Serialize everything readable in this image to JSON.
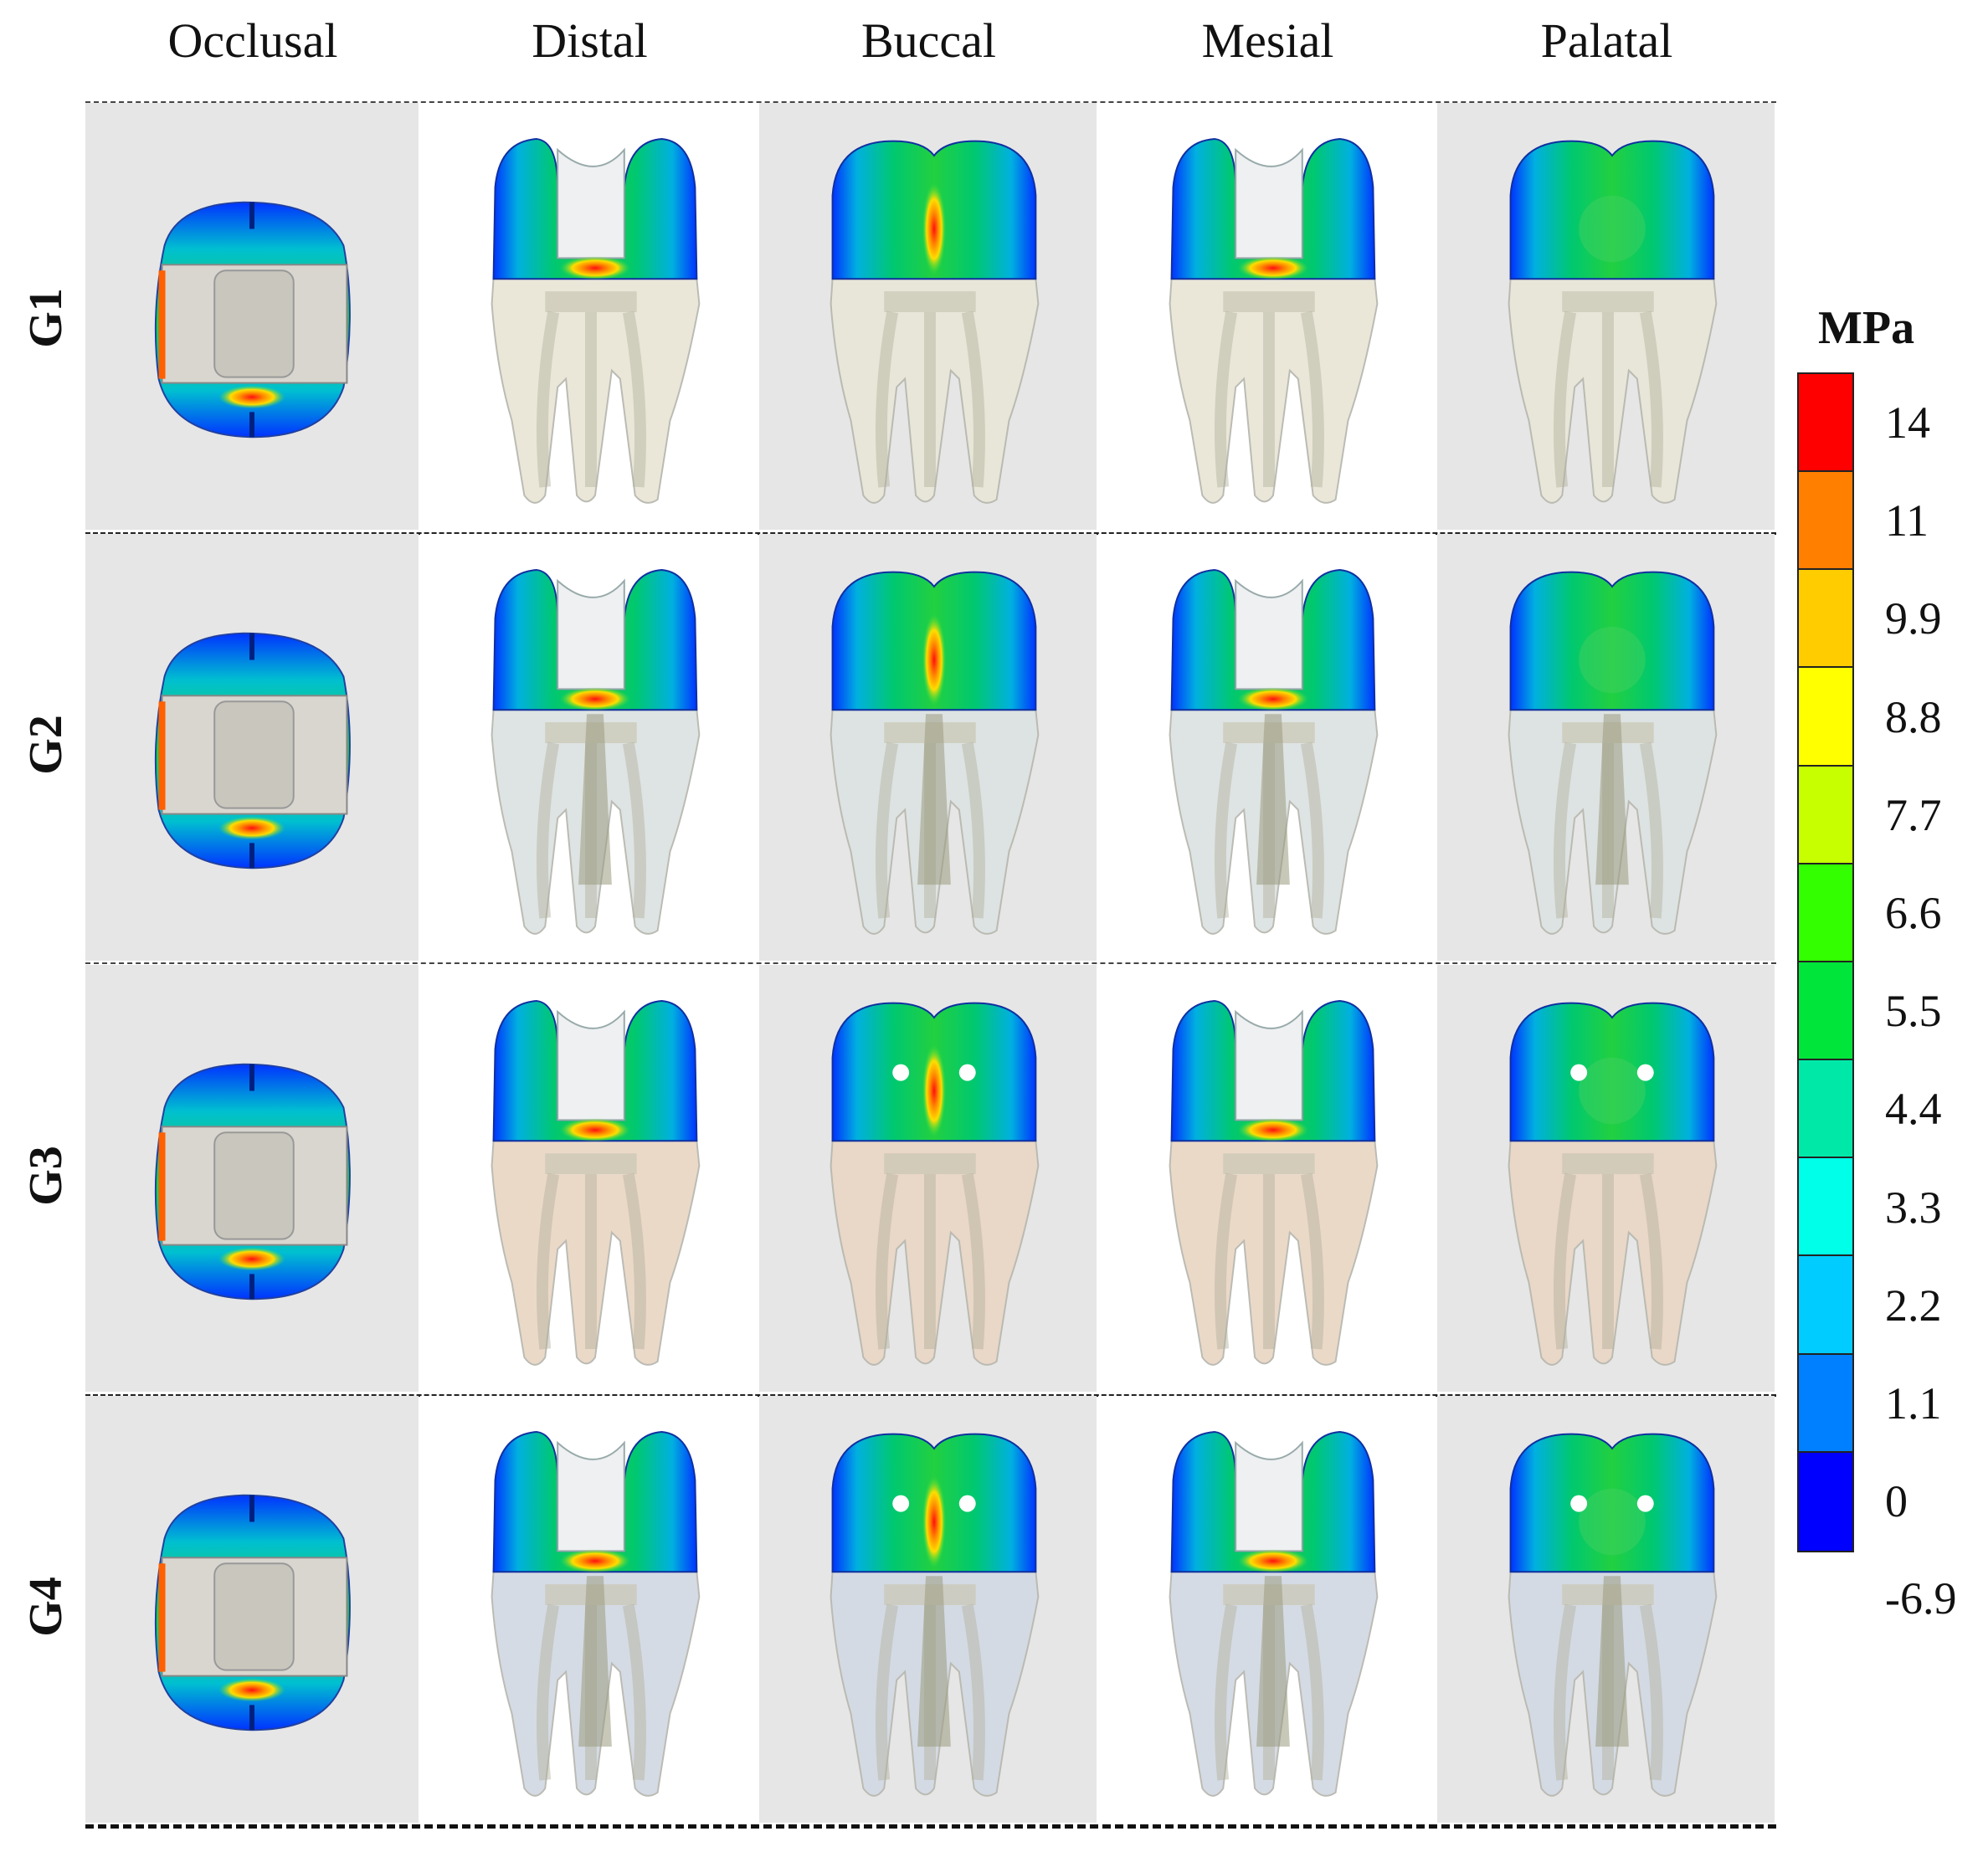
{
  "views": [
    "Occlusal",
    "Distal",
    "Buccal",
    "Mesial",
    "Palatal"
  ],
  "groups": [
    "G1",
    "G2",
    "G3",
    "G4"
  ],
  "legend": {
    "title": "MPa",
    "ticks": [
      "14",
      "11",
      "9.9",
      "8.8",
      "7.7",
      "6.6",
      "5.5",
      "4.4",
      "3.3",
      "2.2",
      "1.1",
      "0",
      "-6.9"
    ],
    "colors": [
      "#ff0000",
      "#ff7f00",
      "#ffcc00",
      "#ffff00",
      "#c8ff00",
      "#33ff00",
      "#00e53a",
      "#00e8a8",
      "#00ffe8",
      "#00ccff",
      "#0080ff",
      "#0000ff"
    ]
  },
  "cell_backgrounds": [
    "#e6e6e6",
    "#ffffff",
    "#e6e6e6",
    "#ffffff",
    "#e6e6e6"
  ],
  "root_colors": [
    "#e9e6d8",
    "#dde3e2",
    "#ead7c6",
    "#d3dae3"
  ]
}
